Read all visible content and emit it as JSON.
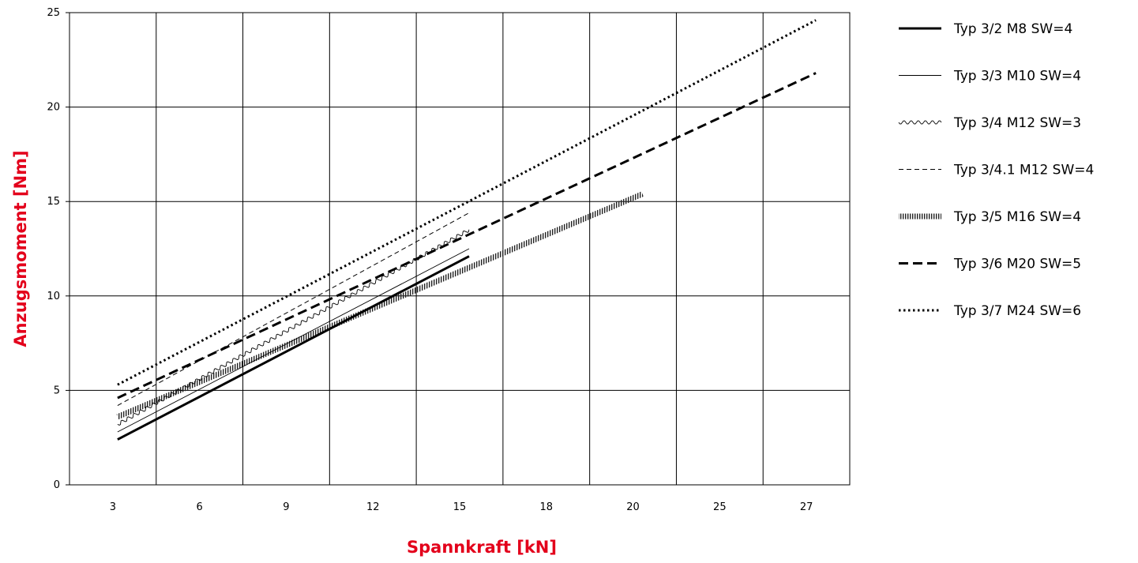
{
  "chart_data": {
    "type": "line",
    "title": "",
    "xlabel": "Spannkraft [kN]",
    "ylabel": "Anzugsmoment [Nm]",
    "x_categories": [
      "3",
      "6",
      "9",
      "12",
      "15",
      "18",
      "20",
      "25",
      "27"
    ],
    "ylim": [
      0,
      25
    ],
    "yticks": [
      "0",
      "5",
      "10",
      "15",
      "20",
      "25"
    ],
    "grid": true,
    "legend_position": "right",
    "series": [
      {
        "name": "Typ 3/2 M8 SW=4",
        "style": "solid-thick",
        "x": [
          3,
          15
        ],
        "y": [
          2.4,
          12.1
        ]
      },
      {
        "name": "Typ 3/3 M10 SW=4",
        "style": "solid-thin",
        "x": [
          3,
          15
        ],
        "y": [
          2.8,
          12.5
        ]
      },
      {
        "name": "Typ 3/4 M12 SW=3",
        "style": "wavy",
        "x": [
          3,
          15
        ],
        "y": [
          3.2,
          13.5
        ]
      },
      {
        "name": "Typ 3/4.1 M12 SW=4",
        "style": "dashed-thin",
        "x": [
          3,
          15
        ],
        "y": [
          4.2,
          14.4
        ]
      },
      {
        "name": "Typ 3/5 M16 SW=4",
        "style": "hatched",
        "x": [
          3,
          20
        ],
        "y": [
          3.6,
          15.4
        ]
      },
      {
        "name": "Typ 3/6 M20 SW=5",
        "style": "dashed-thick",
        "x": [
          3,
          27
        ],
        "y": [
          4.6,
          21.8
        ]
      },
      {
        "name": "Typ 3/7 M24 SW=6",
        "style": "dotted",
        "x": [
          3,
          27
        ],
        "y": [
          5.3,
          24.6
        ]
      }
    ]
  }
}
